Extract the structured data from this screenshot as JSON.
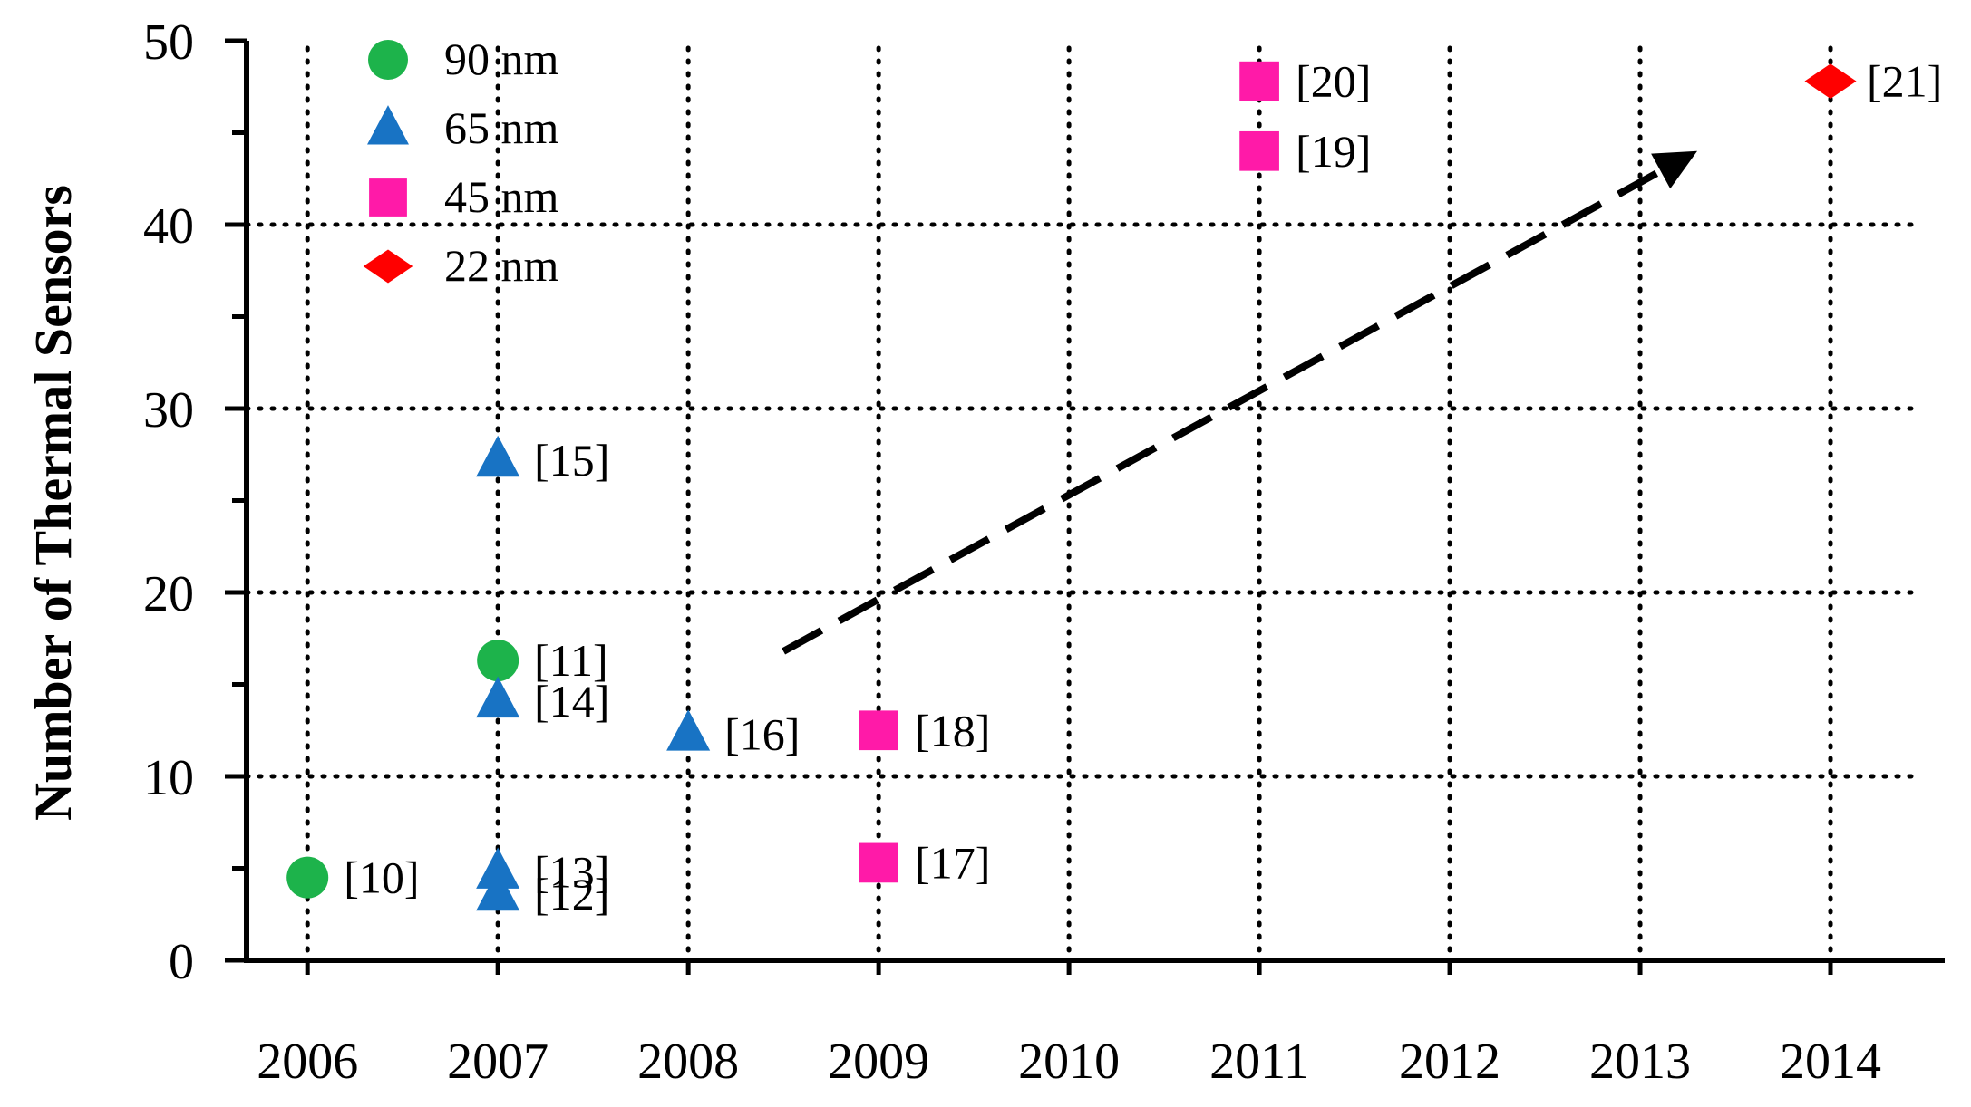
{
  "chart_data": {
    "type": "scatter",
    "title": "",
    "xlabel": "",
    "ylabel": "Number of Thermal Sensors",
    "xlim": [
      2005.68,
      2014.6
    ],
    "ylim": [
      0,
      50
    ],
    "x_ticks": [
      "2006",
      "2007",
      "2008",
      "2009",
      "2010",
      "2011",
      "2012",
      "2013",
      "2014"
    ],
    "y_ticks": [
      "0",
      "10",
      "20",
      "30",
      "40",
      "50"
    ],
    "grid": "dotted",
    "legend_position": "top-left",
    "series": [
      {
        "name": "90 nm",
        "marker": "circle",
        "color": "#1db34b",
        "points": [
          {
            "x": 2006,
            "y": 4.5,
            "label": "[10]"
          },
          {
            "x": 2007,
            "y": 16.3,
            "label": "[11]"
          }
        ]
      },
      {
        "name": "65 nm",
        "marker": "triangle",
        "color": "#1873c4",
        "points": [
          {
            "x": 2007,
            "y": 3.6,
            "label": "[12]"
          },
          {
            "x": 2007,
            "y": 4.8,
            "label": "[13]"
          },
          {
            "x": 2007,
            "y": 14.1,
            "label": "[14]"
          },
          {
            "x": 2007,
            "y": 27.2,
            "label": "[15]"
          },
          {
            "x": 2008,
            "y": 12.3,
            "label": "[16]"
          }
        ]
      },
      {
        "name": "45 nm",
        "marker": "square",
        "color": "#ff1aa8",
        "points": [
          {
            "x": 2009,
            "y": 5.3,
            "label": "[17]"
          },
          {
            "x": 2009,
            "y": 12.5,
            "label": "[18]"
          },
          {
            "x": 2011,
            "y": 44.0,
            "label": "[19]"
          },
          {
            "x": 2011,
            "y": 47.8,
            "label": "[20]"
          }
        ]
      },
      {
        "name": "22 nm",
        "marker": "diamond",
        "color": "#ff0000",
        "points": [
          {
            "x": 2014,
            "y": 47.8,
            "label": "[21]"
          }
        ]
      }
    ],
    "annotations": [
      {
        "type": "dashed-arrow",
        "from": [
          2008.5,
          16.8
        ],
        "to": [
          2013.3,
          44.0
        ]
      }
    ]
  }
}
